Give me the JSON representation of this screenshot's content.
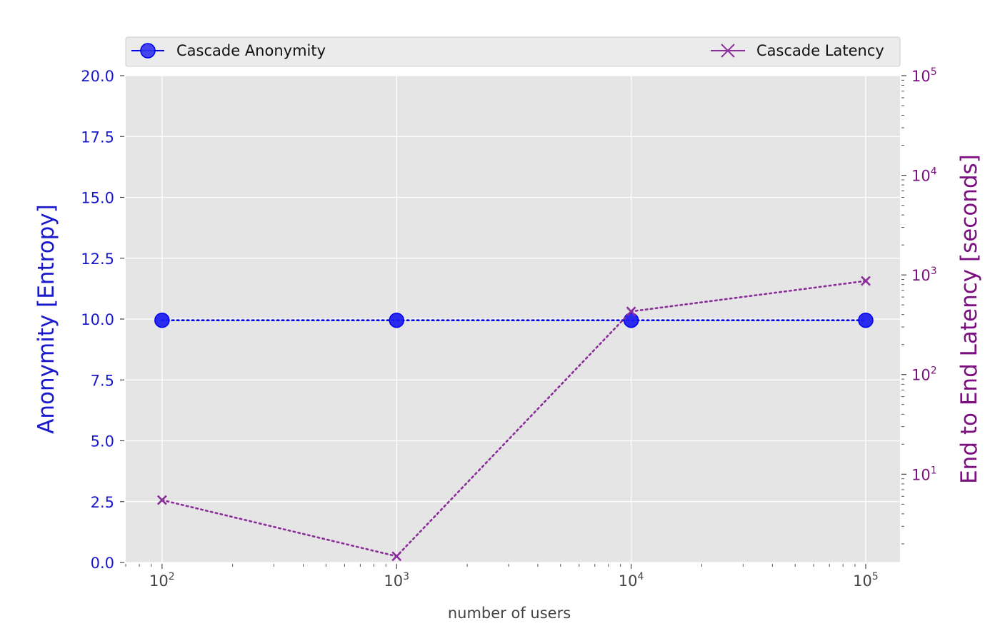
{
  "chart_data": {
    "type": "line",
    "xlabel": "number of users",
    "ylabel_left": "Anonymity [Entropy]",
    "ylabel_right": "End to End Latency [seconds]",
    "x_scale": "log",
    "xlim": [
      70,
      140000
    ],
    "x": [
      100,
      1000,
      10000,
      100000
    ],
    "x_tick_values": [
      100,
      1000,
      10000,
      100000
    ],
    "x_tick_labels": [
      {
        "base": "10",
        "exp": "2"
      },
      {
        "base": "10",
        "exp": "3"
      },
      {
        "base": "10",
        "exp": "4"
      },
      {
        "base": "10",
        "exp": "5"
      }
    ],
    "ylim_left": [
      0,
      20
    ],
    "y_left_ticks": [
      {
        "value": 0,
        "label": "0.0"
      },
      {
        "value": 2.5,
        "label": "2.5"
      },
      {
        "value": 5,
        "label": "5.0"
      },
      {
        "value": 7.5,
        "label": "7.5"
      },
      {
        "value": 10,
        "label": "10.0"
      },
      {
        "value": 12.5,
        "label": "12.5"
      },
      {
        "value": 15,
        "label": "15.0"
      },
      {
        "value": 17.5,
        "label": "17.5"
      },
      {
        "value": 20,
        "label": "20.0"
      }
    ],
    "y_right_scale": "log",
    "ylim_right": [
      1.3,
      100000
    ],
    "y_right_ticks": [
      {
        "value": 10,
        "base": "10",
        "exp": "1"
      },
      {
        "value": 100,
        "base": "10",
        "exp": "2"
      },
      {
        "value": 1000,
        "base": "10",
        "exp": "3"
      },
      {
        "value": 10000,
        "base": "10",
        "exp": "4"
      },
      {
        "value": 100000,
        "base": "10",
        "exp": "5"
      }
    ],
    "grid": true,
    "legend_position": "top",
    "series": [
      {
        "name": "Cascade Anonymity",
        "axis": "left",
        "values": [
          9.95,
          9.95,
          9.95,
          9.95
        ],
        "color": "#0000ee",
        "marker": "circle",
        "linestyle": "dotted"
      },
      {
        "name": "Cascade Latency",
        "axis": "right",
        "values": [
          5.5,
          1.5,
          430,
          870
        ],
        "color": "#8b2e9b",
        "marker": "x",
        "linestyle": "dotted"
      }
    ],
    "colors": {
      "plot_background": "#e5e5e5",
      "grid": "#ffffff",
      "left_axis": "#1a1acc",
      "right_axis": "#7b0f7f",
      "tick_text": "#444444"
    }
  }
}
